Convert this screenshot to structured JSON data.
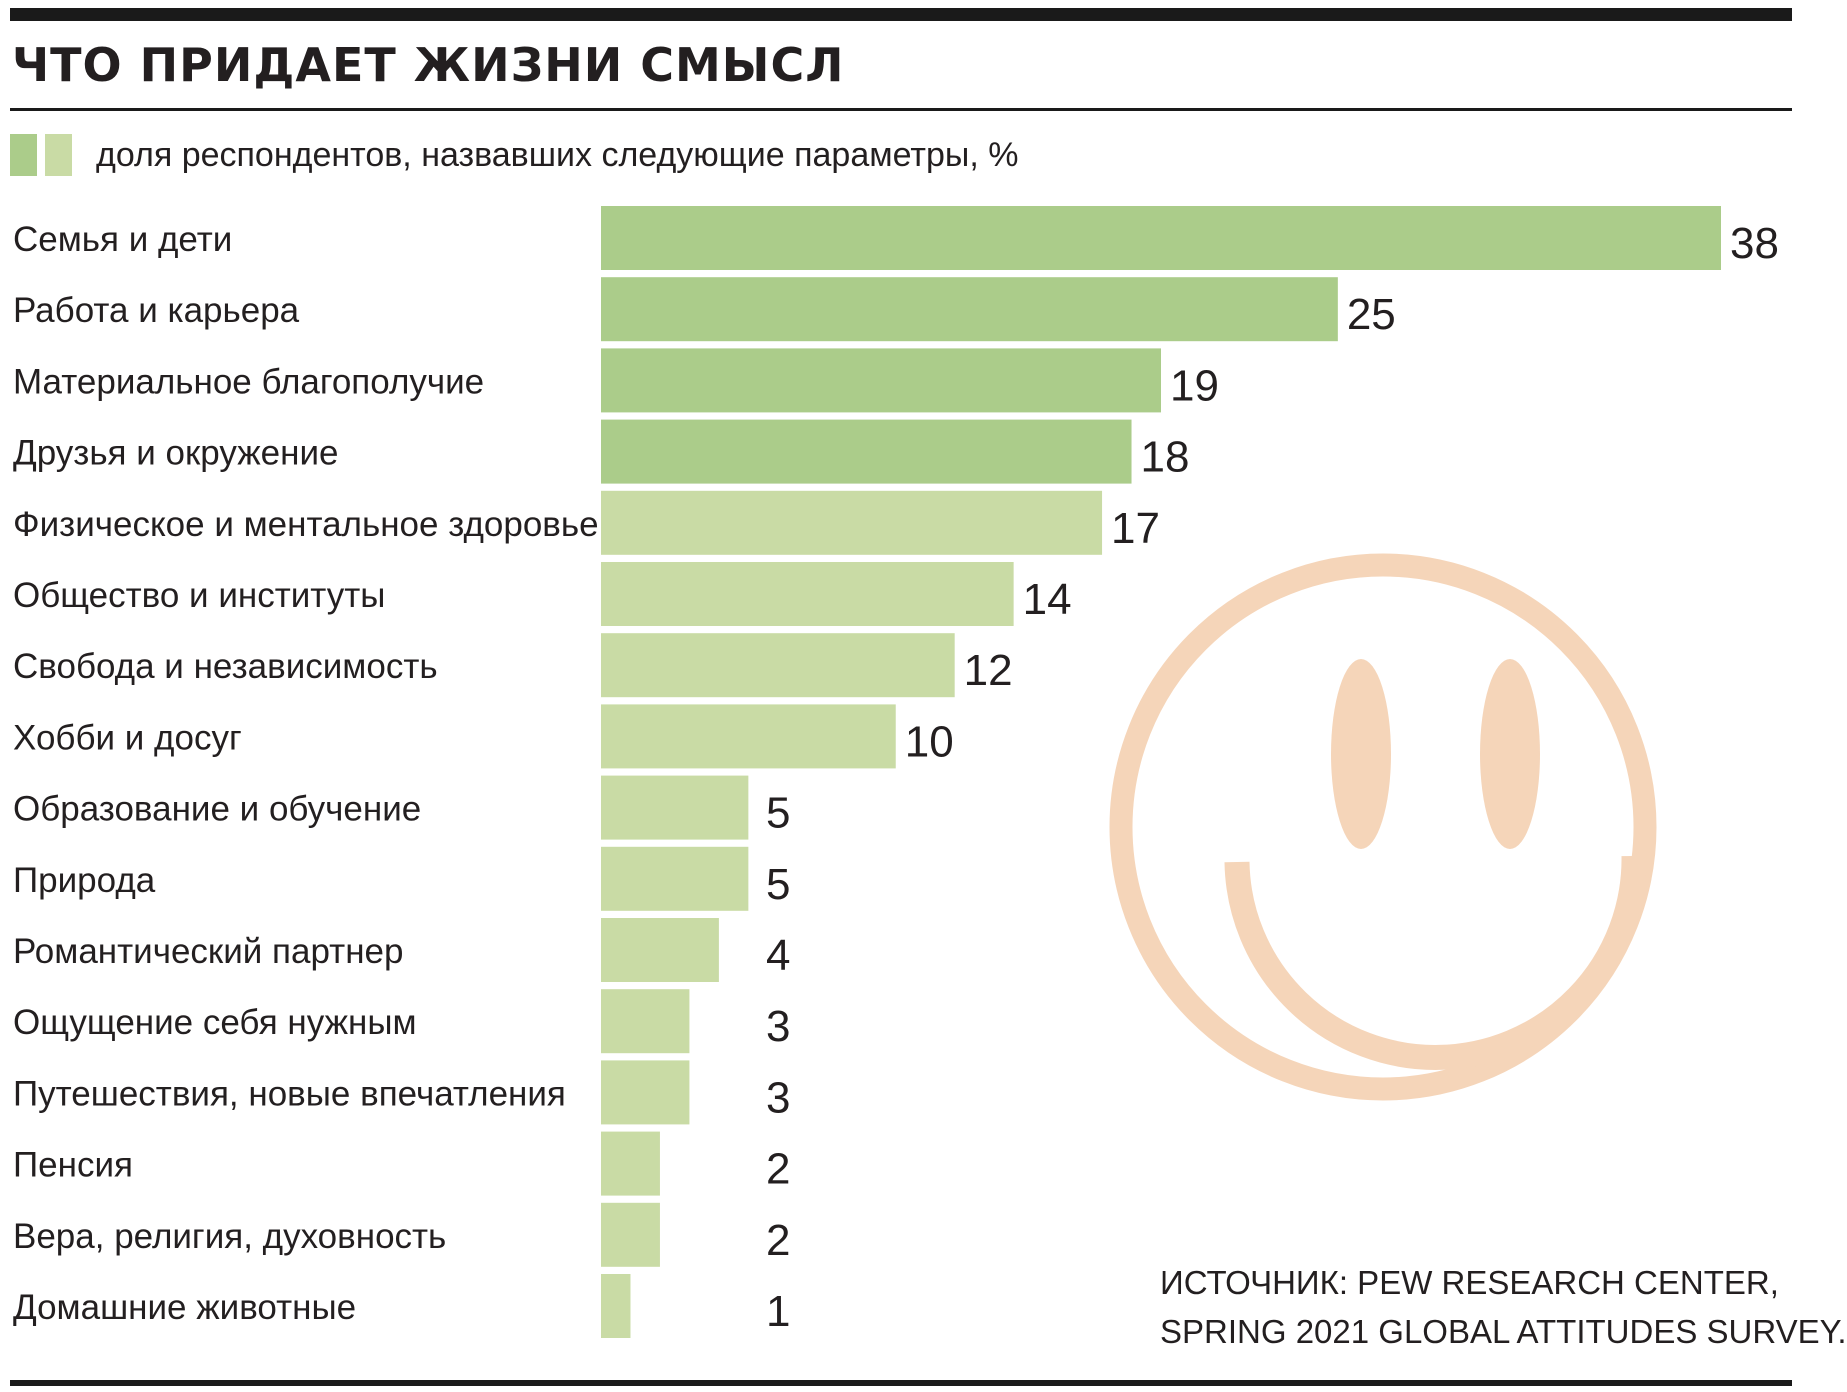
{
  "title": "ЧТО ПРИДАЕТ ЖИЗНИ СМЫСЛ",
  "legend": {
    "text": "доля респондентов, назвавших следующие параметры, %",
    "colors": [
      "#abcc8a",
      "#c9dba5"
    ]
  },
  "source": {
    "line1": "ИСТОЧНИК: PEW RESEARCH CENTER,",
    "line2": "SPRING 2021 GLOBAL ATTITUDES SURVEY."
  },
  "decoration": {
    "icon": "smiley-face-icon",
    "color": "#f5d5b9"
  },
  "chart_data": {
    "type": "bar",
    "orientation": "horizontal",
    "unit": "%",
    "xlim": [
      0,
      38
    ],
    "grid": false,
    "categories": [
      "Семья и дети",
      "Работа и карьера",
      "Материальное благополучие",
      "Друзья и окружение",
      "Физическое и ментальное здоровье",
      "Общество и институты",
      "Свобода и независимость",
      "Хобби и досуг",
      "Образование и обучение",
      "Природа",
      "Романтический партнер",
      "Ощущение себя нужным",
      "Путешествия, новые впечатления",
      "Пенсия",
      "Вера, религия, духовность",
      "Домашние животные"
    ],
    "values": [
      38,
      25,
      19,
      18,
      17,
      14,
      12,
      10,
      5,
      5,
      4,
      3,
      3,
      2,
      2,
      1
    ],
    "colors": {
      "dark": "#abcc8a",
      "light": "#c9dba5",
      "dark_categories": [
        "Семья и дети",
        "Работа и карьера",
        "Материальное благополучие",
        "Друзья и окружение"
      ]
    }
  }
}
